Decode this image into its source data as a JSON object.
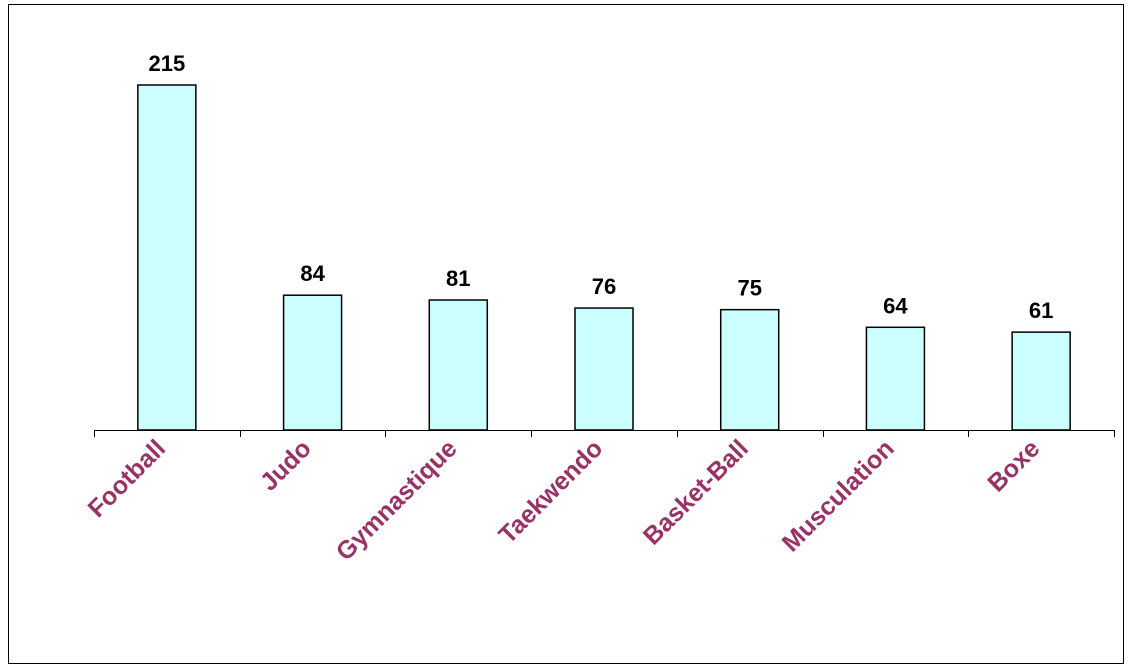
{
  "chart_data": {
    "type": "bar",
    "categories": [
      "Football",
      "Judo",
      "Gymnastique",
      "Taekwendo",
      "Basket-Ball",
      "Musculation",
      "Boxe"
    ],
    "values": [
      215,
      84,
      81,
      76,
      75,
      64,
      61
    ],
    "color": "#ccffff"
  }
}
